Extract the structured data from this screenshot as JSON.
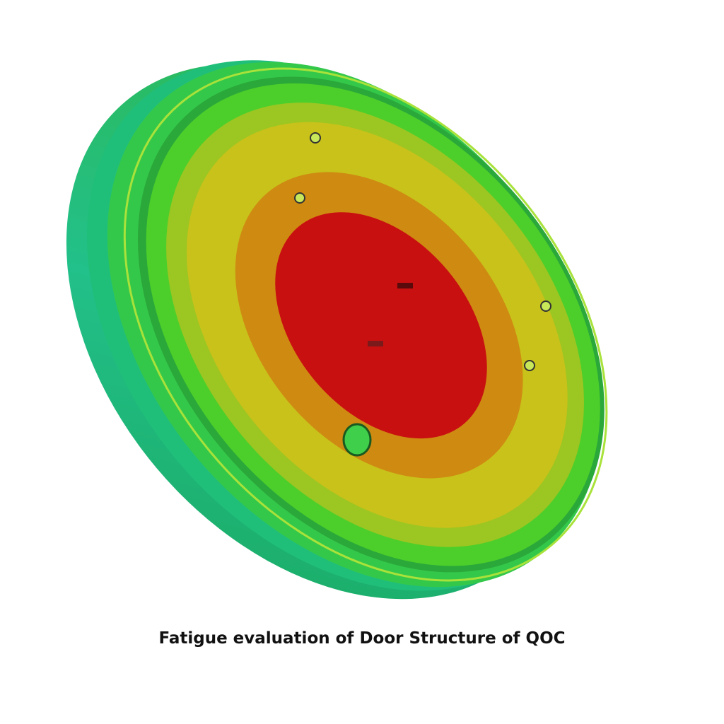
{
  "caption": "Fatigue evaluation of Door Structure of QOC"
}
